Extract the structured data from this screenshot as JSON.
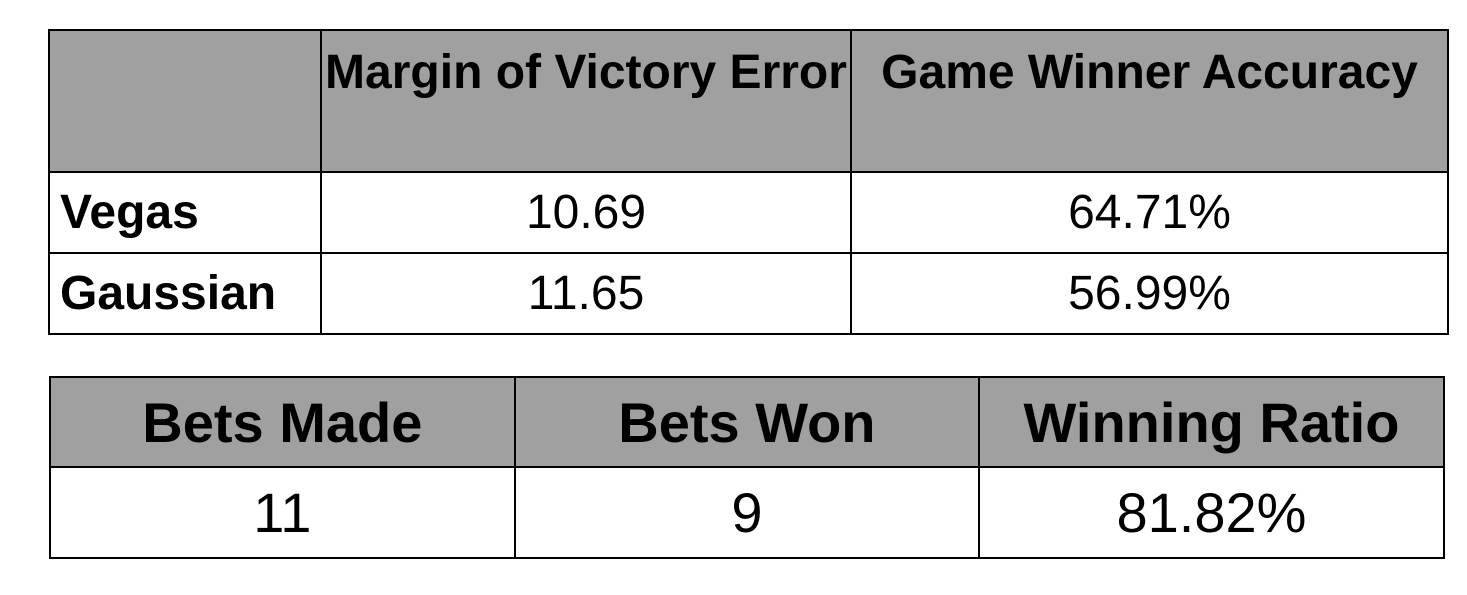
{
  "results_table": {
    "headers": [
      "",
      "Margin of Victory Error",
      "Game Winner Accuracy"
    ],
    "rows": [
      {
        "label": "Vegas",
        "margin_error": "10.69",
        "winner_accuracy": "64.71%"
      },
      {
        "label": "Gaussian",
        "margin_error": "11.65",
        "winner_accuracy": "56.99%"
      }
    ]
  },
  "bets_table": {
    "headers": [
      "Bets Made",
      "Bets Won",
      "Winning Ratio"
    ],
    "row": {
      "bets_made": "11",
      "bets_won": "9",
      "winning_ratio": "81.82%"
    }
  },
  "colors": {
    "header_background": "#a0a0a0",
    "border": "#000000",
    "cell_background": "#ffffff"
  }
}
